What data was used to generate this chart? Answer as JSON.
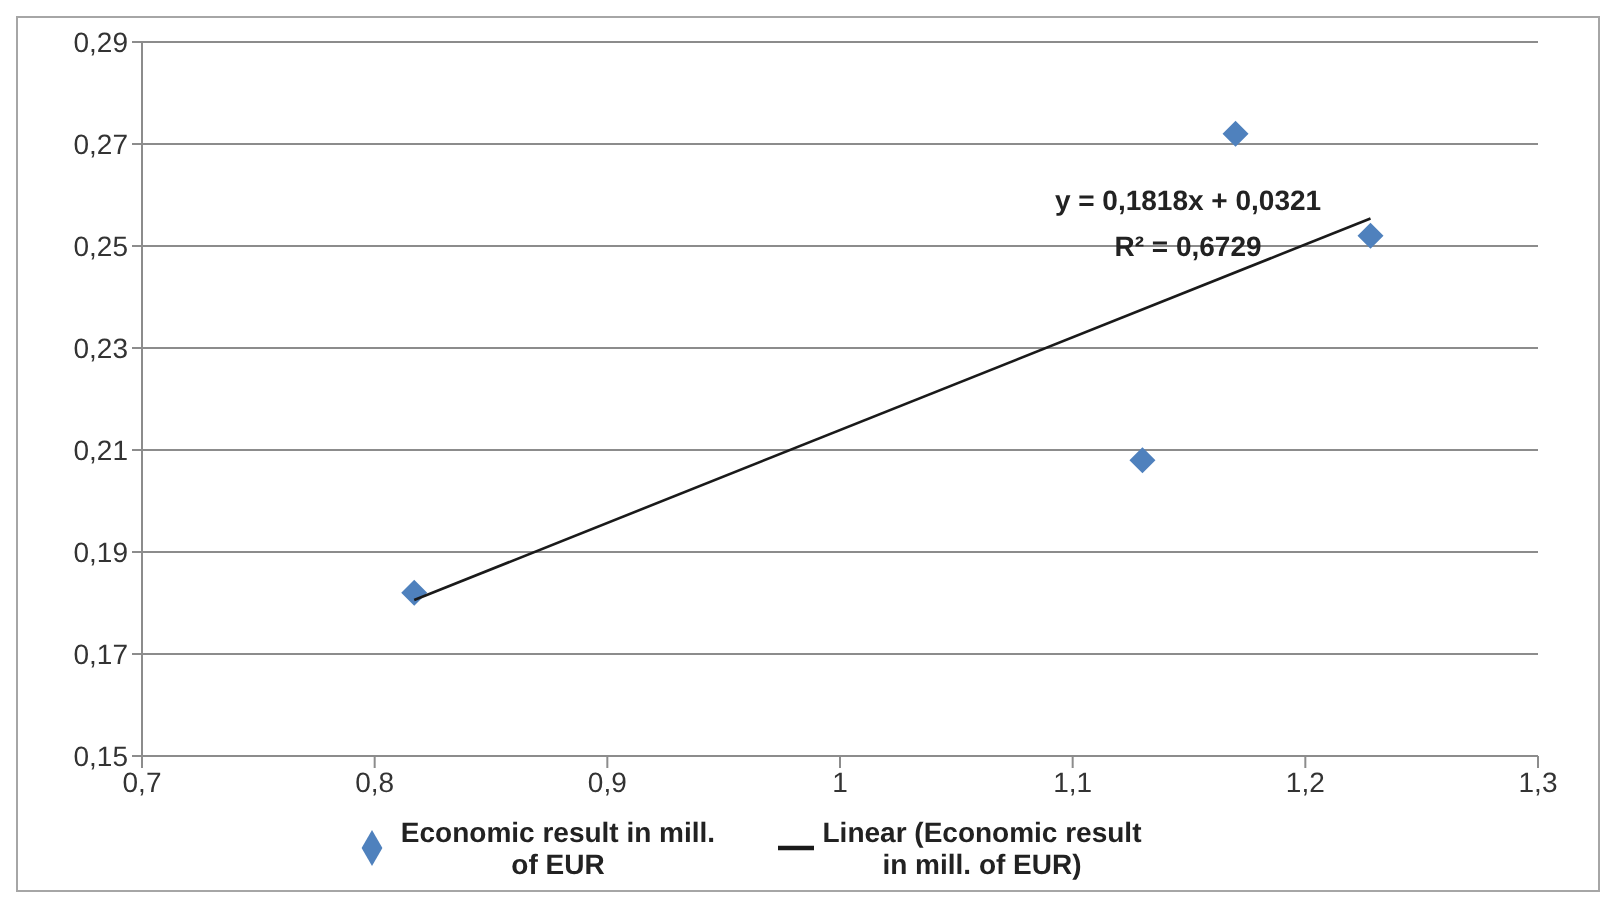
{
  "chart_data": {
    "type": "scatter",
    "series": [
      {
        "name": "Economic result in mill. of EUR",
        "color": "#4f81bd",
        "x": [
          0.817,
          1.13,
          1.17,
          1.228
        ],
        "values": [
          0.182,
          0.208,
          0.272,
          0.252
        ],
        "marker": "diamond"
      },
      {
        "type": "line",
        "name": "Linear (Economic result in mill. of EUR)",
        "color": "#1a1a1a",
        "x": [
          0.817,
          1.228
        ],
        "values": [
          0.1806,
          0.2554
        ],
        "marker": "none",
        "line_style": "solid"
      }
    ],
    "xlim": [
      0.7,
      1.3
    ],
    "xticks": [
      {
        "value": 0.7,
        "label": "0,7"
      },
      {
        "value": 0.8,
        "label": "0,8"
      },
      {
        "value": 0.9,
        "label": "0,9"
      },
      1,
      {
        "value": 1.1,
        "label": "1,1"
      },
      {
        "value": 1.2,
        "label": "1,2"
      },
      {
        "value": 1.3,
        "label": "1,3"
      }
    ],
    "ylim": [
      0.15,
      0.29
    ],
    "yticks": [
      {
        "value": 0.15,
        "label": "0,15"
      },
      {
        "value": 0.17,
        "label": "0,17"
      },
      {
        "value": 0.19,
        "label": "0,19"
      },
      {
        "value": 0.21,
        "label": "0,21"
      },
      {
        "value": 0.23,
        "label": "0,23"
      },
      {
        "value": 0.25,
        "label": "0,25"
      },
      {
        "value": 0.27,
        "label": "0,27"
      },
      {
        "value": 0.29,
        "label": "0,29"
      }
    ],
    "grid": "y",
    "legend": "bottom",
    "annotations": [
      "y = 0,1818x + 0,0321",
      "R² = 0,6729"
    ]
  }
}
